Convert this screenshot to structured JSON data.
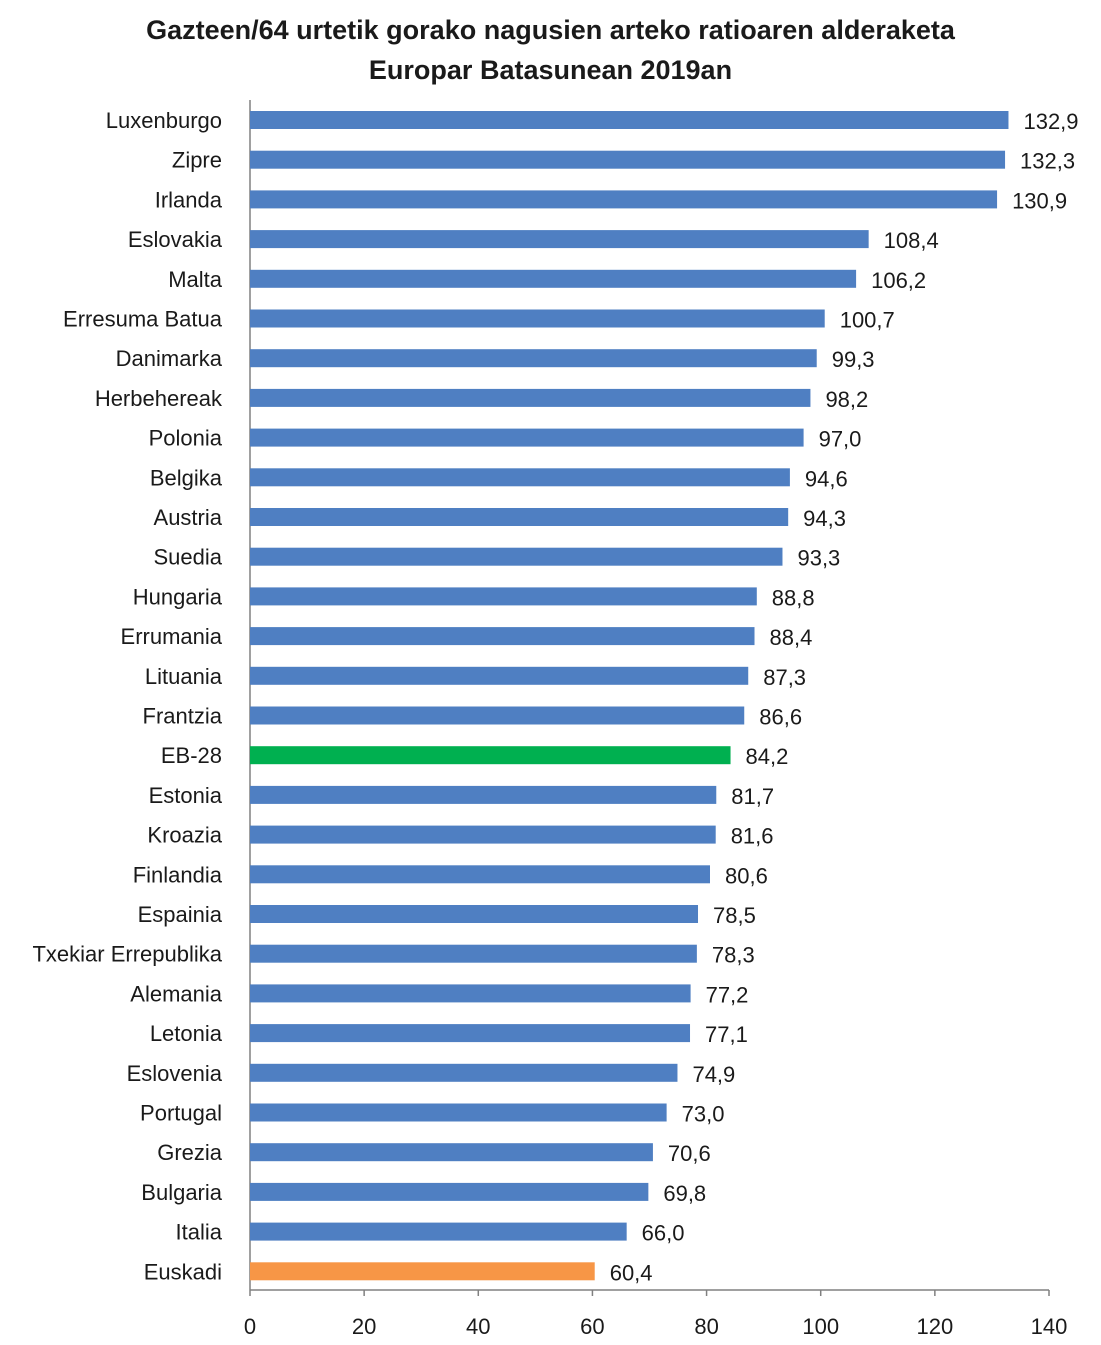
{
  "chart_data": {
    "type": "bar",
    "orientation": "horizontal",
    "title": "Gazteen/64 urtetik gorako nagusien arteko ratioaren alderaketa",
    "subtitle": "Europar Batasunean 2019an",
    "categories": [
      "Luxenburgo",
      "Zipre",
      "Irlanda",
      "Eslovakia",
      "Malta",
      "Erresuma Batua",
      "Danimarka",
      "Herbehereak",
      "Polonia",
      "Belgika",
      "Austria",
      "Suedia",
      "Hungaria",
      "Errumania",
      "Lituania",
      "Frantzia",
      "EB-28",
      "Estonia",
      "Kroazia",
      "Finlandia",
      "Espainia",
      "Txekiar Errepublika",
      "Alemania",
      "Letonia",
      "Eslovenia",
      "Portugal",
      "Grezia",
      "Bulgaria",
      "Italia",
      "Euskadi"
    ],
    "values": [
      132.9,
      132.3,
      130.9,
      108.4,
      106.2,
      100.7,
      99.3,
      98.2,
      97.0,
      94.6,
      94.3,
      93.3,
      88.8,
      88.4,
      87.3,
      86.6,
      84.2,
      81.7,
      81.6,
      80.6,
      78.5,
      78.3,
      77.2,
      77.1,
      74.9,
      73.0,
      70.6,
      69.8,
      66.0,
      60.4
    ],
    "value_labels": [
      "132,9",
      "132,3",
      "130,9",
      "108,4",
      "106,2",
      "100,7",
      "99,3",
      "98,2",
      "97,0",
      "94,6",
      "94,3",
      "93,3",
      "88,8",
      "88,4",
      "87,3",
      "86,6",
      "84,2",
      "81,7",
      "81,6",
      "80,6",
      "78,5",
      "78,3",
      "77,2",
      "77,1",
      "74,9",
      "73,0",
      "70,6",
      "69,8",
      "66,0",
      "60,4"
    ],
    "xlim": [
      0,
      140
    ],
    "xticks": [
      "0",
      "20",
      "40",
      "60",
      "80",
      "100",
      "120",
      "140"
    ],
    "xtick_values": [
      0,
      20,
      40,
      60,
      80,
      100,
      120,
      140
    ],
    "grid": false,
    "colors": {
      "default": "#4f7fc2",
      "highlight_eu": "#00b050",
      "highlight_euskadi": "#f79646",
      "axis": "#808080"
    },
    "highlights": {
      "EB-28": "highlight_eu",
      "Euskadi": "highlight_euskadi"
    }
  }
}
